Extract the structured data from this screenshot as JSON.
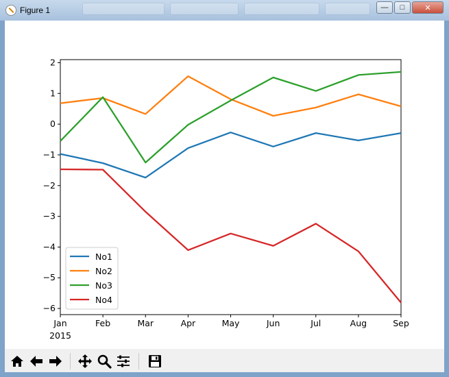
{
  "window": {
    "title": "Figure 1",
    "controls": {
      "minimize": "—",
      "maximize": "□",
      "close": "✕"
    }
  },
  "toolbar": {
    "buttons": [
      {
        "name": "home-button",
        "icon": "home-icon"
      },
      {
        "name": "back-button",
        "icon": "back-arrow-icon"
      },
      {
        "name": "forward-button",
        "icon": "forward-arrow-icon"
      },
      {
        "name": "pan-button",
        "icon": "move-icon"
      },
      {
        "name": "zoom-button",
        "icon": "magnifier-icon"
      },
      {
        "name": "configure-subplots-button",
        "icon": "sliders-icon"
      },
      {
        "name": "save-button",
        "icon": "floppy-disk-icon"
      }
    ]
  },
  "chart_data": {
    "type": "line",
    "x": [
      "Jan",
      "Feb",
      "Mar",
      "Apr",
      "May",
      "Jun",
      "Jul",
      "Aug",
      "Sep"
    ],
    "x_sublabel": "2015",
    "ylim": [
      -6.2,
      2.1
    ],
    "yticks": [
      2,
      1,
      0,
      -1,
      -2,
      -3,
      -4,
      -5,
      -6
    ],
    "ytick_labels": [
      "2",
      "1",
      "0",
      "−1",
      "−2",
      "−3",
      "−4",
      "−5",
      "−6"
    ],
    "grid": false,
    "legend_position": "lower-left",
    "series": [
      {
        "name": "No1",
        "color": "#1f77b4",
        "values": [
          -0.97,
          -1.27,
          -1.74,
          -0.78,
          -0.27,
          -0.73,
          -0.29,
          -0.53,
          -0.29
        ]
      },
      {
        "name": "No2",
        "color": "#ff7f0e",
        "values": [
          0.68,
          0.85,
          0.33,
          1.56,
          0.81,
          0.27,
          0.54,
          0.97,
          0.58
        ]
      },
      {
        "name": "No3",
        "color": "#2ca02c",
        "values": [
          -0.55,
          0.88,
          -1.25,
          -0.02,
          0.77,
          1.52,
          1.08,
          1.6,
          1.7
        ]
      },
      {
        "name": "No4",
        "color": "#d62728",
        "values": [
          -1.47,
          -1.48,
          -2.85,
          -4.1,
          -3.56,
          -3.96,
          -3.24,
          -4.14,
          -5.81
        ]
      }
    ]
  }
}
